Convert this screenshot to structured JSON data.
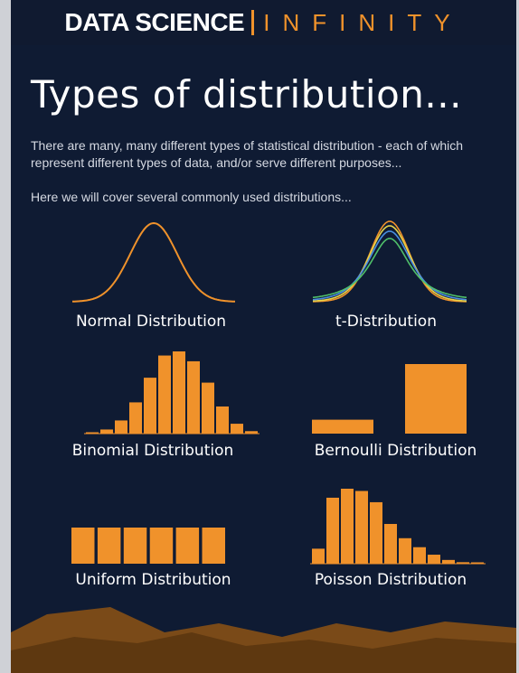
{
  "header": {
    "brand_part1": "DATA SCIENCE",
    "brand_part2": "INFINITY"
  },
  "title": "Types of distribution...",
  "intro": {
    "line1": "There are many, many different types of statistical distribution - each of which represent different types of data, and/or serve different purposes...",
    "line2": "Here we will cover several commonly used distributions..."
  },
  "colors": {
    "background": "#0f1b33",
    "accent": "#f0922b",
    "t_series": [
      "#f0922b",
      "#e6d24a",
      "#4a8ee0",
      "#4fbf6a"
    ]
  },
  "distributions": {
    "normal": {
      "label": "Normal Distribution"
    },
    "t": {
      "label": "t-Distribution"
    },
    "binomial": {
      "label": "Binomial Distribution",
      "values": [
        0.01,
        0.05,
        0.16,
        0.38,
        0.68,
        0.95,
        1.0,
        0.88,
        0.62,
        0.33,
        0.12,
        0.03
      ]
    },
    "bernoulli": {
      "label": "Bernoulli Distribution",
      "values": [
        0.2,
        1.0
      ]
    },
    "uniform": {
      "label": "Uniform Distribution",
      "values": [
        1,
        1,
        1,
        1,
        1,
        1
      ]
    },
    "poisson": {
      "label": "Poisson Distribution",
      "values": [
        0.2,
        0.88,
        1.0,
        0.97,
        0.82,
        0.53,
        0.34,
        0.22,
        0.12,
        0.05,
        0.02,
        0.01
      ]
    }
  }
}
